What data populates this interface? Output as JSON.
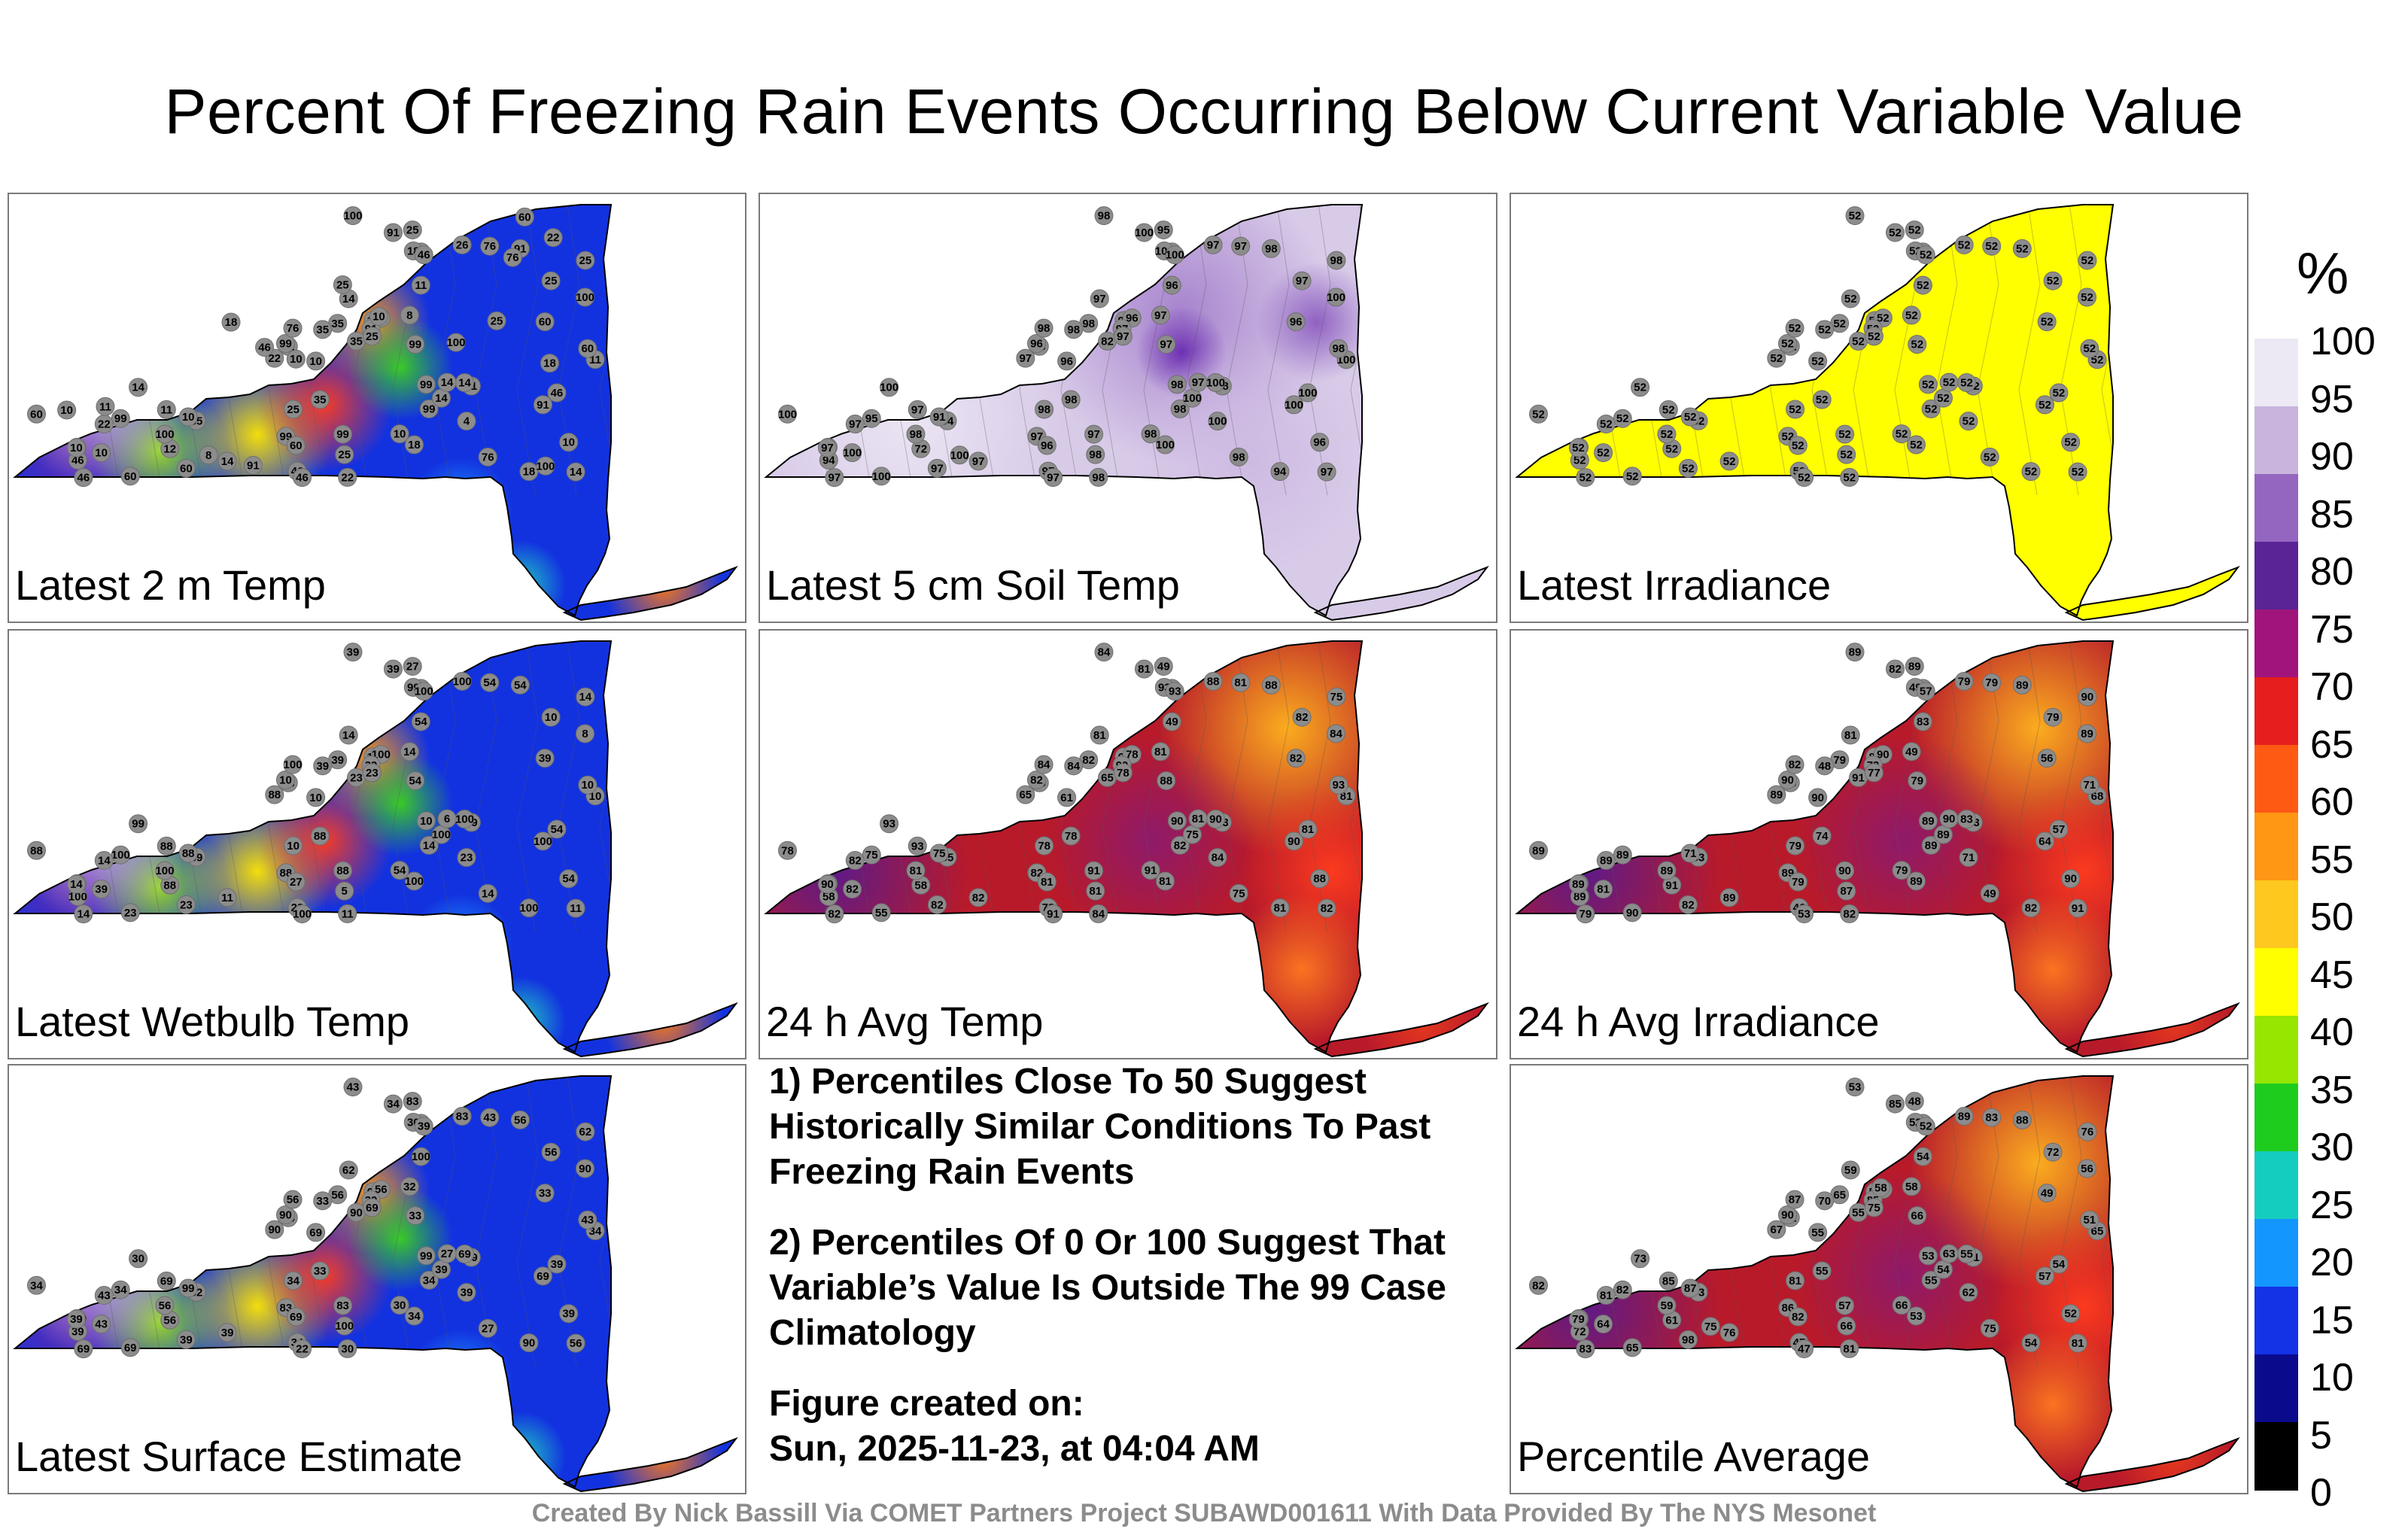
{
  "title": "Percent Of Freezing Rain Events Occurring Below Current Variable Value",
  "panels": [
    {
      "label": "Latest 2 m Temp",
      "scheme": "rainbow",
      "stations": [
        "10",
        "22",
        "8",
        "10",
        "35",
        "25",
        "14",
        "35",
        "14",
        "25",
        "22",
        "11",
        "60",
        "14",
        "99",
        "46",
        "12",
        "8",
        "11",
        "99",
        "100",
        "99",
        "99",
        "76",
        "26",
        "10",
        "18",
        "10",
        "14",
        "100",
        "99",
        "60",
        "91",
        "46",
        "60",
        "25",
        "22",
        "25",
        "14",
        "18",
        "100",
        "99",
        "91",
        "76",
        "91",
        "60",
        "25",
        "14",
        "14",
        "10",
        "25",
        "35",
        "10",
        "99",
        "46",
        "46",
        "60",
        "35",
        "76",
        "22",
        "10",
        "11",
        "8",
        "4",
        "35",
        "91",
        "46",
        "18",
        "46",
        "60",
        "14",
        "11",
        "8",
        "10",
        "76",
        "18",
        "18",
        "46",
        "10",
        "10",
        "22",
        "11",
        "60",
        "25",
        "100",
        "100",
        "91",
        "25"
      ],
      "hot": [
        "99",
        "76",
        "60",
        "46",
        "99",
        "35"
      ]
    },
    {
      "label": "Latest 5 cm Soil Temp",
      "scheme": "lavender",
      "stations": [
        "96",
        "96",
        "91",
        "95",
        "94",
        "95",
        "96",
        "82",
        "97",
        "98",
        "97",
        "96",
        "100",
        "97",
        "95",
        "94",
        "72",
        "96",
        "98",
        "98",
        "100",
        "96",
        "97",
        "98",
        "97",
        "91",
        "94",
        "96",
        "100",
        "98",
        "98",
        "97",
        "97",
        "97",
        "96",
        "97",
        "97",
        "97",
        "100",
        "100",
        "98",
        "97",
        "98",
        "97",
        "100",
        "100",
        "98",
        "97",
        "97",
        "97",
        "98",
        "98",
        "100",
        "97",
        "100",
        "97",
        "96",
        "98",
        "98",
        "98",
        "98",
        "100",
        "97",
        "100",
        "98",
        "100",
        "97",
        "100",
        "100",
        "98",
        "100",
        "97",
        "100"
      ],
      "hot": []
    },
    {
      "label": "Latest Irradiance",
      "scheme": "yellow",
      "stations": [
        "52",
        "52",
        "52",
        "52",
        "52",
        "52",
        "52",
        "52",
        "52",
        "52",
        "52",
        "52",
        "52",
        "52",
        "52",
        "52",
        "52",
        "52",
        "52",
        "52",
        "52",
        "52",
        "52",
        "52",
        "52",
        "52",
        "52",
        "52",
        "52",
        "52",
        "52",
        "52",
        "52",
        "52",
        "52",
        "52",
        "52",
        "52",
        "52",
        "52",
        "52",
        "52",
        "52",
        "52",
        "52",
        "52",
        "52",
        "52",
        "52",
        "52",
        "52",
        "52",
        "52",
        "52",
        "52",
        "52",
        "52",
        "52",
        "52",
        "52",
        "52",
        "52",
        "52",
        "52",
        "52",
        "52",
        "52",
        "52",
        "52",
        "52",
        "52",
        "52"
      ],
      "hot": []
    },
    {
      "label": "Latest Wetbulb Temp",
      "scheme": "rainbow",
      "stations": [
        "10",
        "23",
        "8",
        "10",
        "39",
        "27",
        "14",
        "23",
        "11",
        "14",
        "88",
        "54",
        "23",
        "14",
        "100",
        "100",
        "88",
        "100",
        "39",
        "10",
        "8",
        "10",
        "88",
        "100",
        "100",
        "88",
        "100",
        "54",
        "100",
        "39",
        "14",
        "23",
        "39",
        "14",
        "27",
        "23",
        "14",
        "10",
        "100",
        "100",
        "100",
        "88",
        "54",
        "54",
        "39",
        "88",
        "10",
        "11",
        "6",
        "14",
        "5",
        "39",
        "39",
        "54",
        "54",
        "23",
        "39",
        "88",
        "14",
        "11",
        "54",
        "10",
        "14",
        "23",
        "39",
        "100",
        "100",
        "99",
        "100",
        "10",
        "99",
        "88"
      ],
      "hot": [
        "99",
        "88",
        "54",
        "39"
      ]
    },
    {
      "label": "24 h Avg Temp",
      "scheme": "hot",
      "stations": [
        "61",
        "65",
        "58",
        "61",
        "55",
        "49",
        "61",
        "65",
        "82",
        "75",
        "65",
        "49",
        "55",
        "81",
        "75",
        "58",
        "58",
        "78",
        "93",
        "90",
        "84",
        "82",
        "82",
        "84",
        "88",
        "75",
        "81",
        "88",
        "90",
        "84",
        "82",
        "82",
        "90",
        "82",
        "81",
        "78",
        "82",
        "82",
        "75",
        "81",
        "81",
        "91",
        "88",
        "81",
        "81",
        "78",
        "78",
        "82",
        "81",
        "90",
        "81",
        "82",
        "82",
        "88",
        "81",
        "78",
        "82",
        "78",
        "75",
        "84",
        "91",
        "81",
        "81",
        "84",
        "84",
        "90",
        "91",
        "93",
        "93",
        "93",
        "93",
        "93"
      ],
      "hot": []
    },
    {
      "label": "24 h Avg Irradiance",
      "scheme": "hot",
      "stations": [
        "90",
        "79",
        "68",
        "87",
        "83",
        "89",
        "46",
        "91",
        "91",
        "90",
        "89",
        "83",
        "90",
        "81",
        "89",
        "89",
        "91",
        "90",
        "83",
        "89",
        "89",
        "90",
        "89",
        "82",
        "79",
        "71",
        "82",
        "90",
        "83",
        "89",
        "89",
        "82",
        "73",
        "79",
        "79",
        "77",
        "89",
        "79",
        "89",
        "89",
        "89",
        "90",
        "89",
        "79",
        "82",
        "89",
        "79",
        "89",
        "90",
        "89",
        "87",
        "79",
        "81",
        "79",
        "57",
        "46",
        "56",
        "74",
        "49",
        "82",
        "79",
        "68",
        "49",
        "71",
        "48",
        "64",
        "53",
        "49",
        "57",
        "71"
      ],
      "hot": []
    },
    {
      "label": "Latest Surface Estimate",
      "scheme": "rainbow",
      "stations": [
        "69",
        "94",
        "100",
        "62",
        "62",
        "83",
        "83",
        "90",
        "56",
        "62",
        "90",
        "100",
        "69",
        "62",
        "34",
        "39",
        "56",
        "56",
        "39",
        "99",
        "90",
        "90",
        "83",
        "56",
        "83",
        "99",
        "90",
        "39",
        "69",
        "43",
        "34",
        "39",
        "39",
        "69",
        "69",
        "69",
        "43",
        "56",
        "39",
        "34",
        "56",
        "83",
        "56",
        "43",
        "34",
        "34",
        "34",
        "39",
        "27",
        "39",
        "100",
        "56",
        "43",
        "33",
        "39",
        "34",
        "33",
        "33",
        "27",
        "30",
        "30",
        "34",
        "32",
        "39",
        "33",
        "69",
        "22",
        "30",
        "39",
        "43",
        "30",
        "69"
      ],
      "hot": [
        "100",
        "99",
        "94",
        "90",
        "83",
        "69"
      ]
    },
    {
      "label": "Percentile Average",
      "scheme": "hot",
      "stations": [
        "55",
        "62",
        "51",
        "58",
        "73",
        "48",
        "67",
        "55",
        "81",
        "76",
        "67",
        "54",
        "65",
        "59",
        "82",
        "72",
        "61",
        "50",
        "51",
        "53",
        "56",
        "90",
        "86",
        "87",
        "89",
        "87",
        "54",
        "52",
        "55",
        "53",
        "55",
        "98",
        "85",
        "83",
        "82",
        "75",
        "81",
        "72",
        "54",
        "53",
        "59",
        "57",
        "88",
        "83",
        "85",
        "82",
        "81",
        "76",
        "63",
        "79",
        "66",
        "65",
        "64",
        "66",
        "54",
        "47",
        "49",
        "55",
        "75",
        "81",
        "66",
        "65",
        "58",
        "62",
        "70",
        "57",
        "47",
        "52",
        "52",
        "51",
        "73",
        "85",
        "75",
        "58"
      ],
      "hot": []
    }
  ],
  "notes": {
    "note1": "1) Percentiles Close To 50 Suggest Historically Similar Conditions To Past Freezing Rain Events",
    "note2": "2) Percentiles Of 0 Or 100 Suggest That Variable’s Value Is Outside The 99 Case Climatology",
    "created_label": "Figure created on:",
    "created_value": "Sun, 2025-11-23, at 04:04 AM"
  },
  "colorbar": {
    "unit": "%",
    "ticks": [
      "100",
      "95",
      "90",
      "85",
      "80",
      "75",
      "70",
      "65",
      "60",
      "55",
      "50",
      "45",
      "40",
      "35",
      "30",
      "25",
      "20",
      "15",
      "10",
      "5",
      "0"
    ],
    "stops": [
      "#ece8f4",
      "#c8b4dc",
      "#9466c0",
      "#5a2496",
      "#a0147c",
      "#e61e1e",
      "#ff5a14",
      "#ff9614",
      "#ffc81e",
      "#ffff00",
      "#96e600",
      "#1ecc1e",
      "#14cdbe",
      "#1496ff",
      "#1432e6",
      "#0a0a8c",
      "#000000"
    ]
  },
  "footer": "Created By Nick Bassill Via COMET Partners Project SUBAWD001611 With Data Provided By The NYS Mesonet"
}
